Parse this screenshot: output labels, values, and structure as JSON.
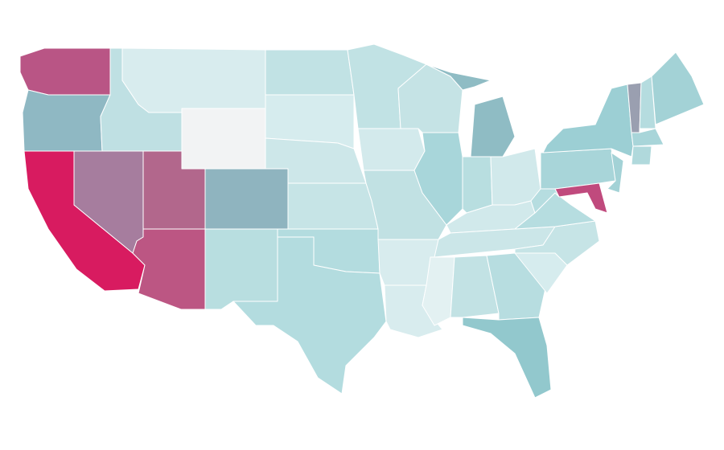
{
  "map": {
    "state_fills": [
      "#b95585",
      "#8fb8c3",
      "#d81b60",
      "#a67d9e",
      "#bfe0e3",
      "#d8ecee",
      "#f2f3f4",
      "#b2678c",
      "#bc5683",
      "#8fb4bf",
      "#b8dee0",
      "#c1e2e4",
      "#d6ecee",
      "#cde7e9",
      "#c6e4e6",
      "#b3dcdf",
      "#b3dcdf",
      "#c1e2e4",
      "#d3eaec",
      "#c1e1e3",
      "#d8ecee",
      "#d8ecee",
      "#c5e3e5",
      "#a8d6da",
      "#8fbcc4",
      "#8fbcc4",
      "#b8dee0",
      "#d1e9eb",
      "#d1e9eb",
      "#cbe6e8",
      "#e3f1f2",
      "#c2e2e4",
      "#b7dde0",
      "#92c8cd",
      "#d6ecee",
      "#c6e4e6",
      "#b6dde0",
      "#b6dde0",
      "#a8d5d9",
      "#9ccfd4",
      "#c04a7d",
      "#a3d2d6",
      "#9a9fb0",
      "#b5dcdf",
      "#a3d2d6",
      "#a8d5d9",
      "#b0d9dc"
    ]
  }
}
